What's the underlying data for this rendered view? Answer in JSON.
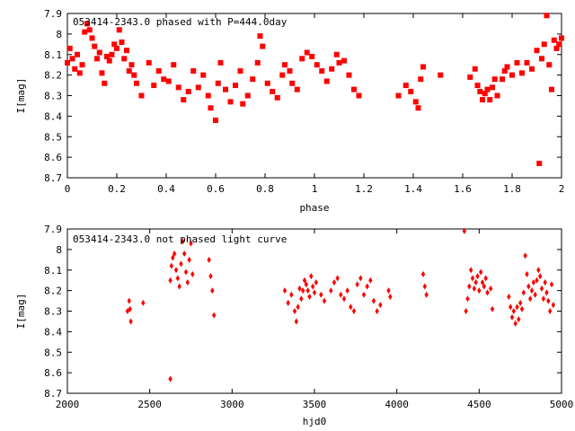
{
  "chart_data": [
    {
      "type": "scatter",
      "title": "053414-2343.0 phased with P=444.0day",
      "xlabel": "phase",
      "ylabel": "I[mag]",
      "xlim": [
        0,
        2
      ],
      "ylim": [
        8.7,
        7.9
      ],
      "y_inverted": true,
      "marker_color": "#ff0000",
      "marker": "filled square",
      "xticks": [
        "0",
        "0.2",
        "0.4",
        "0.6",
        "0.8",
        "1",
        "1.2",
        "1.4",
        "1.6",
        "1.8",
        "2"
      ],
      "yticks": [
        "7.9",
        "8",
        "8.1",
        "8.2",
        "8.3",
        "8.4",
        "8.5",
        "8.6",
        "8.7"
      ],
      "xtick_values": [
        0,
        0.2,
        0.4,
        0.6,
        0.8,
        1.0,
        1.2,
        1.4,
        1.6,
        1.8,
        2.0
      ],
      "ytick_values": [
        7.9,
        8.0,
        8.1,
        8.2,
        8.3,
        8.4,
        8.5,
        8.6,
        8.7
      ],
      "points": [
        [
          0.0,
          8.14
        ],
        [
          0.01,
          8.07
        ],
        [
          0.02,
          8.12
        ],
        [
          0.03,
          8.17
        ],
        [
          0.04,
          8.1
        ],
        [
          0.05,
          8.19
        ],
        [
          0.06,
          8.15
        ],
        [
          0.07,
          7.99
        ],
        [
          0.08,
          7.95
        ],
        [
          0.09,
          7.98
        ],
        [
          0.1,
          8.02
        ],
        [
          0.11,
          8.06
        ],
        [
          0.12,
          8.12
        ],
        [
          0.13,
          8.09
        ],
        [
          0.14,
          8.19
        ],
        [
          0.15,
          8.24
        ],
        [
          0.16,
          8.11
        ],
        [
          0.17,
          8.13
        ],
        [
          0.18,
          8.1
        ],
        [
          0.19,
          8.05
        ],
        [
          0.2,
          8.07
        ],
        [
          0.21,
          7.98
        ],
        [
          0.22,
          8.04
        ],
        [
          0.23,
          8.12
        ],
        [
          0.24,
          8.08
        ],
        [
          0.25,
          8.18
        ],
        [
          0.26,
          8.15
        ],
        [
          0.27,
          8.2
        ],
        [
          0.28,
          8.24
        ],
        [
          0.3,
          8.3
        ],
        [
          0.33,
          8.14
        ],
        [
          0.35,
          8.25
        ],
        [
          0.37,
          8.18
        ],
        [
          0.39,
          8.22
        ],
        [
          0.41,
          8.23
        ],
        [
          0.43,
          8.15
        ],
        [
          0.45,
          8.26
        ],
        [
          0.47,
          8.32
        ],
        [
          0.49,
          8.28
        ],
        [
          0.51,
          8.18
        ],
        [
          0.53,
          8.26
        ],
        [
          0.55,
          8.2
        ],
        [
          0.57,
          8.3
        ],
        [
          0.58,
          8.36
        ],
        [
          0.6,
          8.42
        ],
        [
          0.61,
          8.24
        ],
        [
          0.62,
          8.14
        ],
        [
          0.64,
          8.27
        ],
        [
          0.66,
          8.33
        ],
        [
          0.68,
          8.25
        ],
        [
          0.7,
          8.18
        ],
        [
          0.71,
          8.34
        ],
        [
          0.73,
          8.3
        ],
        [
          0.75,
          8.22
        ],
        [
          0.77,
          8.14
        ],
        [
          0.78,
          8.01
        ],
        [
          0.79,
          8.06
        ],
        [
          0.81,
          8.24
        ],
        [
          0.83,
          8.28
        ],
        [
          0.85,
          8.31
        ],
        [
          0.87,
          8.2
        ],
        [
          0.88,
          8.15
        ],
        [
          0.9,
          8.18
        ],
        [
          0.91,
          8.24
        ],
        [
          0.93,
          8.27
        ],
        [
          0.95,
          8.12
        ],
        [
          0.97,
          8.09
        ],
        [
          0.99,
          8.11
        ],
        [
          1.01,
          8.15
        ],
        [
          1.03,
          8.18
        ],
        [
          1.05,
          8.23
        ],
        [
          1.07,
          8.17
        ],
        [
          1.09,
          8.1
        ],
        [
          1.1,
          8.14
        ],
        [
          1.12,
          8.13
        ],
        [
          1.14,
          8.2
        ],
        [
          1.16,
          8.27
        ],
        [
          1.18,
          8.3
        ],
        [
          1.34,
          8.3
        ],
        [
          1.37,
          8.25
        ],
        [
          1.39,
          8.28
        ],
        [
          1.41,
          8.33
        ],
        [
          1.42,
          8.36
        ],
        [
          1.43,
          8.22
        ],
        [
          1.44,
          8.16
        ],
        [
          1.51,
          8.2
        ],
        [
          1.63,
          8.21
        ],
        [
          1.65,
          8.17
        ],
        [
          1.66,
          8.25
        ],
        [
          1.67,
          8.28
        ],
        [
          1.68,
          8.32
        ],
        [
          1.69,
          8.29
        ],
        [
          1.7,
          8.27
        ],
        [
          1.71,
          8.32
        ],
        [
          1.72,
          8.26
        ],
        [
          1.73,
          8.22
        ],
        [
          1.74,
          8.3
        ],
        [
          1.76,
          8.22
        ],
        [
          1.77,
          8.18
        ],
        [
          1.78,
          8.16
        ],
        [
          1.8,
          8.2
        ],
        [
          1.82,
          8.14
        ],
        [
          1.84,
          8.19
        ],
        [
          1.86,
          8.14
        ],
        [
          1.88,
          8.17
        ],
        [
          1.9,
          8.08
        ],
        [
          1.91,
          8.63
        ],
        [
          1.92,
          8.12
        ],
        [
          1.93,
          8.05
        ],
        [
          1.94,
          7.91
        ],
        [
          1.95,
          8.15
        ],
        [
          1.96,
          8.27
        ],
        [
          1.97,
          8.03
        ],
        [
          1.98,
          8.07
        ],
        [
          1.99,
          8.05
        ],
        [
          2.0,
          8.02
        ]
      ]
    },
    {
      "type": "scatter",
      "title": "053414-2343.0 not phased light curve",
      "xlabel": "hjd0",
      "ylabel": "I[mag]",
      "xlim": [
        2000,
        5000
      ],
      "ylim": [
        8.7,
        7.9
      ],
      "y_inverted": true,
      "marker_color": "#ff0000",
      "marker": "filled diamond",
      "xticks": [
        "2000",
        "2500",
        "3000",
        "3500",
        "4000",
        "4500",
        "5000"
      ],
      "yticks": [
        "7.9",
        "8",
        "8.1",
        "8.2",
        "8.3",
        "8.4",
        "8.5",
        "8.6",
        "8.7"
      ],
      "xtick_values": [
        2000,
        2500,
        3000,
        3500,
        4000,
        4500,
        5000
      ],
      "ytick_values": [
        7.9,
        8.0,
        8.1,
        8.2,
        8.3,
        8.4,
        8.5,
        8.6,
        8.7
      ],
      "points": [
        [
          2365,
          8.3
        ],
        [
          2375,
          8.25
        ],
        [
          2380,
          8.29
        ],
        [
          2385,
          8.35
        ],
        [
          2460,
          8.26
        ],
        [
          2625,
          8.63
        ],
        [
          2625,
          8.15
        ],
        [
          2632,
          8.08
        ],
        [
          2640,
          8.04
        ],
        [
          2650,
          8.02
        ],
        [
          2660,
          8.1
        ],
        [
          2670,
          8.14
        ],
        [
          2680,
          8.18
        ],
        [
          2690,
          8.07
        ],
        [
          2700,
          7.96
        ],
        [
          2710,
          8.02
        ],
        [
          2720,
          8.11
        ],
        [
          2730,
          8.16
        ],
        [
          2740,
          8.05
        ],
        [
          2750,
          7.97
        ],
        [
          2760,
          8.12
        ],
        [
          2860,
          8.05
        ],
        [
          2870,
          8.13
        ],
        [
          2880,
          8.2
        ],
        [
          2890,
          8.32
        ],
        [
          3320,
          8.2
        ],
        [
          3340,
          8.26
        ],
        [
          3360,
          8.22
        ],
        [
          3380,
          8.3
        ],
        [
          3390,
          8.35
        ],
        [
          3400,
          8.28
        ],
        [
          3410,
          8.19
        ],
        [
          3420,
          8.24
        ],
        [
          3430,
          8.2
        ],
        [
          3440,
          8.15
        ],
        [
          3450,
          8.17
        ],
        [
          3460,
          8.2
        ],
        [
          3470,
          8.23
        ],
        [
          3480,
          8.13
        ],
        [
          3490,
          8.18
        ],
        [
          3500,
          8.21
        ],
        [
          3510,
          8.16
        ],
        [
          3540,
          8.22
        ],
        [
          3560,
          8.25
        ],
        [
          3600,
          8.2
        ],
        [
          3620,
          8.16
        ],
        [
          3640,
          8.14
        ],
        [
          3660,
          8.22
        ],
        [
          3680,
          8.24
        ],
        [
          3700,
          8.2
        ],
        [
          3720,
          8.28
        ],
        [
          3740,
          8.3
        ],
        [
          3760,
          8.17
        ],
        [
          3780,
          8.14
        ],
        [
          3800,
          8.22
        ],
        [
          3820,
          8.18
        ],
        [
          3840,
          8.15
        ],
        [
          3860,
          8.25
        ],
        [
          3880,
          8.3
        ],
        [
          3900,
          8.27
        ],
        [
          3950,
          8.2
        ],
        [
          3960,
          8.23
        ],
        [
          4160,
          8.12
        ],
        [
          4170,
          8.18
        ],
        [
          4180,
          8.22
        ],
        [
          4410,
          7.91
        ],
        [
          4420,
          8.3
        ],
        [
          4430,
          8.24
        ],
        [
          4440,
          8.18
        ],
        [
          4450,
          8.1
        ],
        [
          4460,
          8.14
        ],
        [
          4470,
          8.19
        ],
        [
          4480,
          8.16
        ],
        [
          4490,
          8.13
        ],
        [
          4500,
          8.2
        ],
        [
          4510,
          8.11
        ],
        [
          4520,
          8.16
        ],
        [
          4530,
          8.18
        ],
        [
          4540,
          8.14
        ],
        [
          4550,
          8.21
        ],
        [
          4570,
          8.19
        ],
        [
          4580,
          8.29
        ],
        [
          4680,
          8.23
        ],
        [
          4690,
          8.28
        ],
        [
          4700,
          8.33
        ],
        [
          4710,
          8.3
        ],
        [
          4720,
          8.36
        ],
        [
          4730,
          8.28
        ],
        [
          4740,
          8.34
        ],
        [
          4750,
          8.26
        ],
        [
          4760,
          8.29
        ],
        [
          4770,
          8.21
        ],
        [
          4780,
          8.03
        ],
        [
          4790,
          8.12
        ],
        [
          4800,
          8.18
        ],
        [
          4810,
          8.24
        ],
        [
          4820,
          8.2
        ],
        [
          4830,
          8.16
        ],
        [
          4840,
          8.22
        ],
        [
          4850,
          8.15
        ],
        [
          4860,
          8.1
        ],
        [
          4870,
          8.13
        ],
        [
          4880,
          8.19
        ],
        [
          4890,
          8.24
        ],
        [
          4900,
          8.16
        ],
        [
          4910,
          8.21
        ],
        [
          4920,
          8.25
        ],
        [
          4930,
          8.3
        ],
        [
          4940,
          8.17
        ],
        [
          4950,
          8.27
        ]
      ]
    }
  ]
}
